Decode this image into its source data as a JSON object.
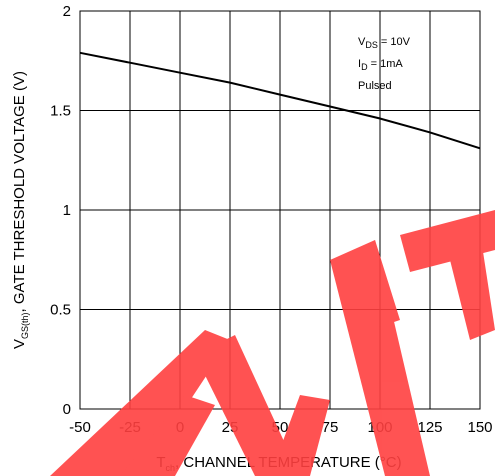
{
  "chart_data": {
    "type": "line",
    "title": "",
    "xlabel": {
      "main": "T",
      "sub": "ch",
      "rest": ", CHANNEL TEMPERATURE (°C)"
    },
    "ylabel": {
      "main": "V",
      "sub": "GS(th)",
      "rest": ", GATE THRESHOLD VOLTAGE (V)"
    },
    "xlim": [
      -50,
      150
    ],
    "ylim": [
      0,
      2
    ],
    "x_ticks": [
      -50,
      -25,
      0,
      25,
      50,
      75,
      100,
      125,
      150
    ],
    "y_ticks": [
      0,
      0.5,
      1,
      1.5,
      2
    ],
    "x_tick_labels": [
      "-50",
      "-25",
      "0",
      "25",
      "50",
      "75",
      "100",
      "125",
      "150"
    ],
    "y_tick_labels": [
      "0",
      "0.5",
      "1",
      "1.5",
      "2"
    ],
    "grid": true,
    "annotations": [
      {
        "main": "V",
        "sub": "DS",
        "rest": " = 10V"
      },
      {
        "main": "I",
        "sub": "D",
        "rest": " = 1mA"
      },
      {
        "main": "Pulsed",
        "sub": "",
        "rest": ""
      }
    ],
    "series": [
      {
        "x": [
          -50,
          -25,
          0,
          25,
          50,
          75,
          100,
          125,
          150
        ],
        "y": [
          1.79,
          1.74,
          1.69,
          1.64,
          1.58,
          1.52,
          1.46,
          1.39,
          1.31
        ]
      }
    ],
    "watermark": "EMT"
  }
}
